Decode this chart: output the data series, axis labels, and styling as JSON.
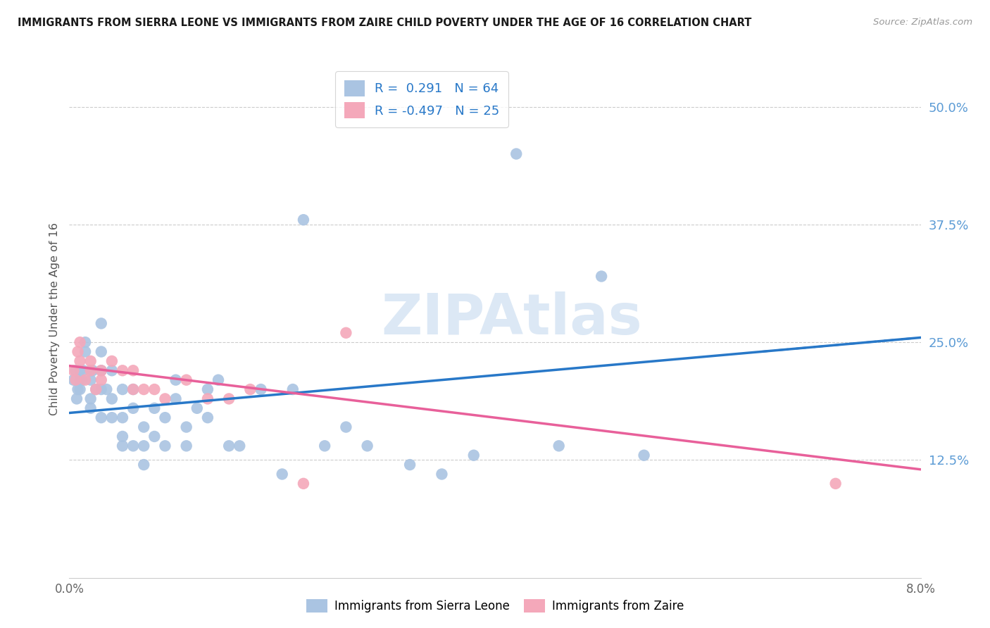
{
  "title": "IMMIGRANTS FROM SIERRA LEONE VS IMMIGRANTS FROM ZAIRE CHILD POVERTY UNDER THE AGE OF 16 CORRELATION CHART",
  "source": "Source: ZipAtlas.com",
  "ylabel": "Child Poverty Under the Age of 16",
  "xlim": [
    0.0,
    0.08
  ],
  "ylim": [
    0.0,
    0.55
  ],
  "xticks": [
    0.0,
    0.01,
    0.02,
    0.03,
    0.04,
    0.05,
    0.06,
    0.07,
    0.08
  ],
  "xticklabels": [
    "0.0%",
    "",
    "",
    "",
    "",
    "",
    "",
    "",
    "8.0%"
  ],
  "yticks_right": [
    0.125,
    0.25,
    0.375,
    0.5
  ],
  "yticklabels_right": [
    "12.5%",
    "25.0%",
    "37.5%",
    "50.0%"
  ],
  "sierra_leone_color": "#aac4e2",
  "zaire_color": "#f4a8ba",
  "sierra_leone_line_color": "#2878c8",
  "zaire_line_color": "#e8609a",
  "legend_R_sierra": " 0.291",
  "legend_N_sierra": "64",
  "legend_R_zaire": "-0.497",
  "legend_N_zaire": "25",
  "watermark": "ZIPAtlas",
  "sl_line_x0": 0.0,
  "sl_line_y0": 0.175,
  "sl_line_x1": 0.08,
  "sl_line_y1": 0.255,
  "z_line_x0": 0.0,
  "z_line_y0": 0.225,
  "z_line_x1": 0.08,
  "z_line_y1": 0.115,
  "sierra_leone_x": [
    0.0004,
    0.0006,
    0.0007,
    0.0008,
    0.001,
    0.001,
    0.001,
    0.0012,
    0.0013,
    0.0015,
    0.0015,
    0.002,
    0.002,
    0.002,
    0.002,
    0.0022,
    0.0025,
    0.003,
    0.003,
    0.003,
    0.003,
    0.003,
    0.0035,
    0.004,
    0.004,
    0.004,
    0.005,
    0.005,
    0.005,
    0.005,
    0.006,
    0.006,
    0.006,
    0.007,
    0.007,
    0.007,
    0.008,
    0.008,
    0.009,
    0.009,
    0.01,
    0.01,
    0.011,
    0.011,
    0.012,
    0.013,
    0.013,
    0.014,
    0.015,
    0.016,
    0.018,
    0.02,
    0.021,
    0.022,
    0.024,
    0.026,
    0.028,
    0.032,
    0.035,
    0.038,
    0.042,
    0.046,
    0.05,
    0.054
  ],
  "sierra_leone_y": [
    0.21,
    0.22,
    0.19,
    0.2,
    0.22,
    0.21,
    0.2,
    0.21,
    0.22,
    0.25,
    0.24,
    0.22,
    0.21,
    0.19,
    0.18,
    0.22,
    0.2,
    0.27,
    0.24,
    0.22,
    0.2,
    0.17,
    0.2,
    0.19,
    0.22,
    0.17,
    0.2,
    0.17,
    0.15,
    0.14,
    0.2,
    0.18,
    0.14,
    0.16,
    0.14,
    0.12,
    0.18,
    0.15,
    0.17,
    0.14,
    0.21,
    0.19,
    0.16,
    0.14,
    0.18,
    0.2,
    0.17,
    0.21,
    0.14,
    0.14,
    0.2,
    0.11,
    0.2,
    0.38,
    0.14,
    0.16,
    0.14,
    0.12,
    0.11,
    0.13,
    0.45,
    0.14,
    0.32,
    0.13
  ],
  "zaire_x": [
    0.0004,
    0.0006,
    0.0008,
    0.001,
    0.001,
    0.0015,
    0.002,
    0.002,
    0.0025,
    0.003,
    0.003,
    0.004,
    0.005,
    0.006,
    0.006,
    0.007,
    0.008,
    0.009,
    0.011,
    0.013,
    0.015,
    0.017,
    0.022,
    0.026,
    0.072
  ],
  "zaire_y": [
    0.22,
    0.21,
    0.24,
    0.23,
    0.25,
    0.21,
    0.23,
    0.22,
    0.2,
    0.22,
    0.21,
    0.23,
    0.22,
    0.2,
    0.22,
    0.2,
    0.2,
    0.19,
    0.21,
    0.19,
    0.19,
    0.2,
    0.1,
    0.26,
    0.1
  ]
}
